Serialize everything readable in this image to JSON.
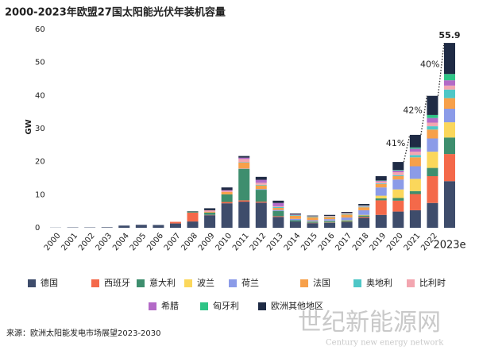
{
  "chart_data": {
    "type": "stacked_bar",
    "title": "2000-2023年欧盟27国太阳能光伏年装机容量",
    "y_label": "GW",
    "source": "来源：欧洲太阳能发电市场展望2023-2030",
    "watermark": [
      "世纪新能源网",
      "Century new energy network"
    ],
    "categories": [
      "2000",
      "2001",
      "2002",
      "2003",
      "2004",
      "2005",
      "2006",
      "2007",
      "2008",
      "2009",
      "2010",
      "2011",
      "2012",
      "2013",
      "2014",
      "2015",
      "2016",
      "2017",
      "2018",
      "2019",
      "2020",
      "2021",
      "2022",
      "2023e"
    ],
    "ylim": [
      0,
      60
    ],
    "yticks": [
      0,
      10,
      20,
      30,
      40,
      50,
      60
    ],
    "series": [
      {
        "name": "德国",
        "color": "#3e4c6b",
        "values": [
          0.05,
          0.1,
          0.1,
          0.15,
          0.67,
          0.9,
          0.85,
          1.3,
          1.9,
          3.8,
          7.4,
          7.9,
          7.6,
          3.3,
          1.9,
          1.4,
          1.5,
          1.7,
          3.0,
          3.9,
          4.9,
          5.3,
          7.5,
          14.1
        ]
      },
      {
        "name": "西班牙",
        "color": "#f4694a",
        "values": [
          0,
          0,
          0,
          0,
          0,
          0,
          0,
          0.5,
          2.7,
          0.1,
          0.4,
          0.4,
          0.3,
          0.2,
          0,
          0.1,
          0.1,
          0.1,
          0.3,
          4.4,
          3.3,
          4.9,
          8.1,
          8.2
        ]
      },
      {
        "name": "意大利",
        "color": "#3e8e6e",
        "values": [
          0,
          0,
          0,
          0,
          0,
          0,
          0,
          0,
          0.3,
          0.7,
          2.3,
          9.5,
          3.6,
          1.6,
          0.4,
          0.3,
          0.4,
          0.4,
          0.4,
          0.6,
          0.8,
          0.9,
          2.5,
          5.0
        ]
      },
      {
        "name": "波兰",
        "color": "#fbd75b",
        "values": [
          0,
          0,
          0,
          0,
          0,
          0,
          0,
          0,
          0,
          0,
          0,
          0,
          0,
          0,
          0,
          0.1,
          0.1,
          0.1,
          0.2,
          0.8,
          2.6,
          3.7,
          4.9,
          4.6
        ]
      },
      {
        "name": "荷兰",
        "color": "#8b9be8",
        "values": [
          0,
          0,
          0,
          0,
          0,
          0,
          0,
          0,
          0,
          0,
          0,
          0.1,
          0.2,
          0.3,
          0.4,
          0.4,
          0.5,
          0.8,
          1.4,
          2.5,
          3.0,
          3.8,
          4.0,
          4.1
        ]
      },
      {
        "name": "法国",
        "color": "#f7a04a",
        "values": [
          0,
          0,
          0,
          0,
          0,
          0,
          0,
          0,
          0,
          0.2,
          0.7,
          1.8,
          1.1,
          0.6,
          0.9,
          0.9,
          0.6,
          0.9,
          0.9,
          1.0,
          1.0,
          2.7,
          2.7,
          3.2
        ]
      },
      {
        "name": "奥地利",
        "color": "#4ec7c7",
        "values": [
          0,
          0,
          0,
          0,
          0,
          0,
          0,
          0,
          0,
          0,
          0,
          0.1,
          0.2,
          0.3,
          0.2,
          0.2,
          0.2,
          0.2,
          0.2,
          0.2,
          0.3,
          0.7,
          1.0,
          2.6
        ]
      },
      {
        "name": "比利时",
        "color": "#f3a6b0",
        "values": [
          0,
          0,
          0,
          0,
          0,
          0,
          0,
          0,
          0,
          0.5,
          0.4,
          1.0,
          0.6,
          0.2,
          0.1,
          0.1,
          0.2,
          0.3,
          0.2,
          0.6,
          0.9,
          1.0,
          1.1,
          1.2
        ]
      },
      {
        "name": "希腊",
        "color": "#b36ac7",
        "values": [
          0,
          0,
          0,
          0,
          0,
          0,
          0,
          0,
          0,
          0,
          0.2,
          0.4,
          0.9,
          1.0,
          0.1,
          0,
          0,
          0,
          0.1,
          0.2,
          0.5,
          0.9,
          1.4,
          1.6
        ]
      },
      {
        "name": "匈牙利",
        "color": "#2ec486",
        "values": [
          0,
          0,
          0,
          0,
          0,
          0,
          0,
          0,
          0,
          0,
          0,
          0,
          0,
          0,
          0,
          0,
          0,
          0,
          0.1,
          0.1,
          0.2,
          0.4,
          0.9,
          1.9
        ]
      },
      {
        "name": "欧洲其他地区",
        "color": "#1f2b45",
        "values": [
          0,
          0,
          0,
          0,
          0,
          0,
          0,
          0,
          0.1,
          0.6,
          0.8,
          0.5,
          0.9,
          0.7,
          0.3,
          0.2,
          0.3,
          0.3,
          0.4,
          1.3,
          2.4,
          3.8,
          5.8,
          9.4
        ]
      }
    ],
    "annotations": [
      "41%",
      "42%",
      "40%",
      "55.9"
    ]
  }
}
